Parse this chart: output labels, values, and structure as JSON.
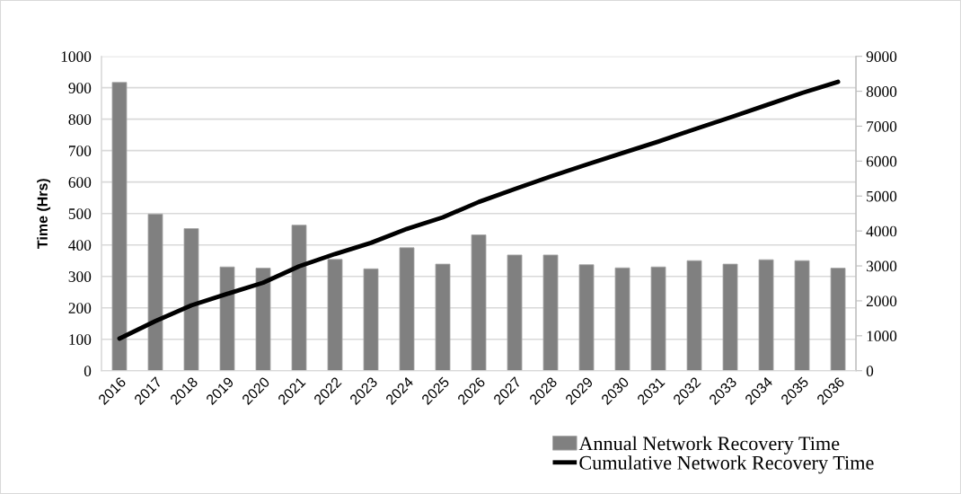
{
  "chart_data": {
    "type": "bar",
    "ylabel": "Time (Hrs)",
    "categories": [
      "2016",
      "2017",
      "2018",
      "2019",
      "2020",
      "2021",
      "2022",
      "2023",
      "2024",
      "2025",
      "2026",
      "2027",
      "2028",
      "2029",
      "2030",
      "2031",
      "2032",
      "2033",
      "2034",
      "2035",
      "2036"
    ],
    "series": [
      {
        "name": "Annual Network Recovery Time",
        "color": "#808080",
        "values": [
          917,
          498,
          452,
          330,
          326,
          463,
          354,
          324,
          391,
          339,
          432,
          368,
          368,
          337,
          327,
          330,
          350,
          339,
          353,
          350,
          326
        ]
      },
      {
        "name": "Cumulative Network Recovery Time",
        "type": "line",
        "axis": "y2",
        "color": "#000000",
        "line_style": "solid",
        "values": [
          920,
          1420,
          1870,
          2200,
          2520,
          2990,
          3340,
          3660,
          4060,
          4390,
          4830,
          5200,
          5560,
          5900,
          6230,
          6560,
          6910,
          7250,
          7600,
          7950,
          8270
        ]
      }
    ],
    "ylim": [
      0,
      1000
    ],
    "yticks": [
      0,
      100,
      200,
      300,
      400,
      500,
      600,
      700,
      800,
      900,
      1000
    ],
    "y2lim": [
      0,
      9000
    ],
    "y2ticks": [
      0,
      1000,
      2000,
      3000,
      4000,
      5000,
      6000,
      7000,
      8000,
      9000
    ],
    "grid": "y",
    "legend": "bottom right"
  }
}
